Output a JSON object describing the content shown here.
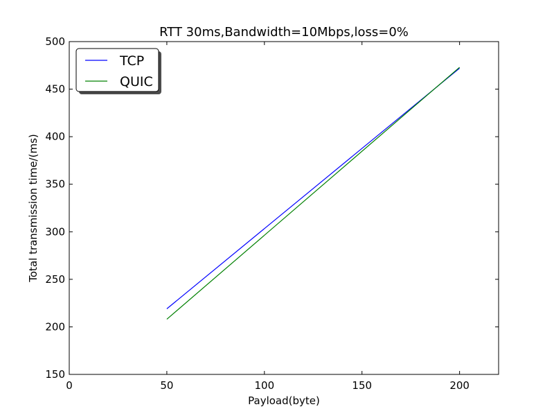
{
  "chart_data": {
    "type": "line",
    "title": "RTT 30ms,Bandwidth=10Mbps,loss=0%",
    "xlabel": "Payload(byte)",
    "ylabel": "Total transmission time/(ms)",
    "xlim": [
      0,
      220
    ],
    "ylim": [
      150,
      500
    ],
    "xticks": [
      0,
      50,
      100,
      150,
      200
    ],
    "yticks": [
      150,
      200,
      250,
      300,
      350,
      400,
      450,
      500
    ],
    "x": [
      50,
      200
    ],
    "series": [
      {
        "name": "TCP",
        "color": "#0000ff",
        "values": [
          219,
          472
        ]
      },
      {
        "name": "QUIC",
        "color": "#008000",
        "values": [
          208,
          473
        ]
      }
    ],
    "grid": false,
    "legend_position": "top-left"
  }
}
